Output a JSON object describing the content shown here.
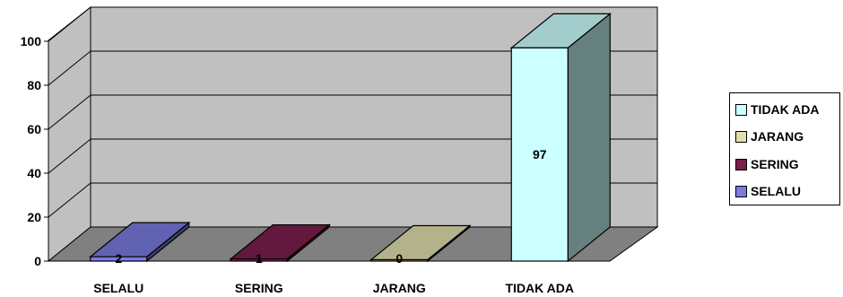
{
  "chart_data": {
    "type": "bar",
    "categories": [
      "SELALU",
      "SERING",
      "JARANG",
      "TIDAK ADA"
    ],
    "values": [
      2,
      1,
      0,
      97
    ],
    "colors": [
      "#7b7bdf",
      "#7a1f4c",
      "#e1dfae",
      "#ccffff"
    ],
    "ylim": [
      0,
      100
    ],
    "yticks": [
      0,
      20,
      40,
      60,
      80,
      100
    ],
    "ytick_labels": [
      "0",
      "20",
      "40",
      "60",
      "80",
      "100"
    ],
    "grid": true,
    "legend_position": "right",
    "legend": [
      "TIDAK ADA",
      "JARANG",
      "SERING",
      "SELALU"
    ],
    "legend_colors": [
      "#ccffff",
      "#e1dfae",
      "#7a1f4c",
      "#7b7bdf"
    ],
    "style": "3d-column",
    "wall_color": "#c0c0c0",
    "floor_color": "#808080"
  }
}
